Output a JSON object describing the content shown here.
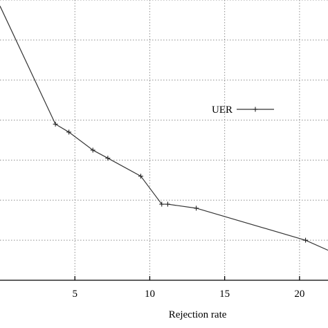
{
  "chart_data": {
    "type": "line",
    "title": "",
    "xlabel": "Rejection rate",
    "ylabel": "",
    "xlim": [
      0,
      21.9
    ],
    "ylim": [
      0,
      7
    ],
    "x_ticks": [
      5,
      10,
      15,
      20
    ],
    "y_grid": [
      1,
      2,
      3,
      4,
      5,
      6,
      7
    ],
    "grid": true,
    "legend": "right",
    "series": [
      {
        "name": "UER",
        "color": "#333333",
        "x": [
          0,
          3.7,
          4.6,
          6.2,
          7.2,
          9.4,
          10.8,
          11.2,
          13.1,
          20.4,
          21.9
        ],
        "y": [
          6.85,
          3.9,
          3.7,
          3.25,
          3.05,
          2.6,
          1.9,
          1.9,
          1.8,
          1.0,
          0.75
        ]
      }
    ]
  }
}
